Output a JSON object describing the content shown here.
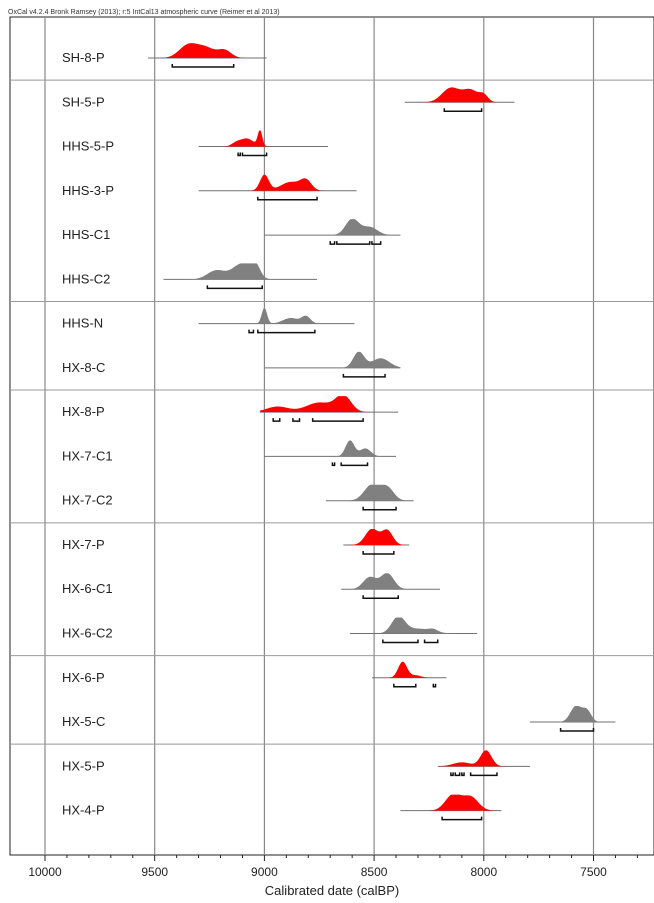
{
  "header": "OxCal v4.2.4 Bronk Ramsey (2013); r:5 IntCal13 atmospheric curve (Reimer et al 2013)",
  "colors": {
    "red": "#ff0000",
    "gray": "#808080",
    "line": "#707070",
    "bracket": "#111111",
    "separator": "#999999"
  },
  "chart_data": {
    "type": "area",
    "title": "",
    "xlabel": "Calibrated date (calBP)",
    "ylabel": "",
    "xlim": [
      10000,
      7250
    ],
    "x_reversed": true,
    "grid": "vertical",
    "xticks": [
      10000,
      9500,
      9000,
      8500,
      8000,
      7500
    ],
    "groups_after": [
      1,
      6,
      8,
      11,
      14,
      16
    ],
    "series": [
      {
        "name": "SH-8-P",
        "color": "red",
        "range": [
          9530,
          8990
        ],
        "peaks": [
          [
            9350,
            0.75,
            40
          ],
          [
            9270,
            0.65,
            45
          ],
          [
            9180,
            0.45,
            30
          ]
        ],
        "brackets": [
          [
            9420,
            9140
          ]
        ]
      },
      {
        "name": "SH-5-P",
        "color": "red",
        "range": [
          8360,
          7860
        ],
        "peaks": [
          [
            8150,
            0.9,
            40
          ],
          [
            8060,
            0.75,
            35
          ],
          [
            8000,
            0.4,
            20
          ]
        ],
        "brackets": [
          [
            8180,
            8010
          ]
        ]
      },
      {
        "name": "HHS-5-P",
        "color": "red",
        "range": [
          9300,
          8710
        ],
        "peaks": [
          [
            9020,
            1.0,
            10
          ],
          [
            9080,
            0.5,
            30
          ],
          [
            9130,
            0.2,
            20
          ]
        ],
        "brackets": [
          [
            9120,
            9110
          ],
          [
            9100,
            8990
          ]
        ]
      },
      {
        "name": "HHS-3-P",
        "color": "red",
        "range": [
          9300,
          8580
        ],
        "peaks": [
          [
            9000,
            1.0,
            20
          ],
          [
            8880,
            0.55,
            45
          ],
          [
            8810,
            0.6,
            25
          ]
        ],
        "brackets": [
          [
            9030,
            8760
          ]
        ]
      },
      {
        "name": "HHS-C1",
        "color": "gray",
        "range": [
          9000,
          8380
        ],
        "peaks": [
          [
            8600,
            1.0,
            30
          ],
          [
            8520,
            0.5,
            35
          ]
        ],
        "brackets": [
          [
            8700,
            8680
          ],
          [
            8670,
            8520
          ],
          [
            8510,
            8470
          ]
        ]
      },
      {
        "name": "HHS-C2",
        "color": "gray",
        "range": [
          9460,
          8760
        ],
        "peaks": [
          [
            9220,
            0.55,
            40
          ],
          [
            9100,
            1.0,
            45
          ],
          [
            9040,
            0.7,
            20
          ]
        ],
        "brackets": [
          [
            9260,
            9010
          ]
        ]
      },
      {
        "name": "HHS-N",
        "color": "gray",
        "range": [
          9300,
          8590
        ],
        "peaks": [
          [
            9000,
            1.0,
            12
          ],
          [
            8880,
            0.35,
            35
          ],
          [
            8810,
            0.45,
            20
          ]
        ],
        "brackets": [
          [
            9070,
            9050
          ],
          [
            9030,
            8770
          ]
        ]
      },
      {
        "name": "HX-8-C",
        "color": "gray",
        "range": [
          9000,
          8380
        ],
        "peaks": [
          [
            8570,
            1.0,
            25
          ],
          [
            8470,
            0.6,
            40
          ]
        ],
        "brackets": [
          [
            8640,
            8450
          ]
        ]
      },
      {
        "name": "HX-8-P",
        "color": "red",
        "range": [
          9020,
          8390
        ],
        "peaks": [
          [
            8940,
            0.35,
            50
          ],
          [
            8750,
            0.6,
            60
          ],
          [
            8640,
            1.0,
            35
          ]
        ],
        "brackets": [
          [
            8960,
            8930
          ],
          [
            8870,
            8840
          ],
          [
            8780,
            8550
          ]
        ]
      },
      {
        "name": "HX-7-C1",
        "color": "gray",
        "range": [
          9000,
          8400
        ],
        "peaks": [
          [
            8610,
            1.0,
            20
          ],
          [
            8540,
            0.5,
            25
          ]
        ],
        "brackets": [
          [
            8690,
            8680
          ],
          [
            8650,
            8530
          ]
        ]
      },
      {
        "name": "HX-7-C2",
        "color": "gray",
        "range": [
          8720,
          8320
        ],
        "peaks": [
          [
            8510,
            1.0,
            35
          ],
          [
            8440,
            0.8,
            30
          ]
        ],
        "brackets": [
          [
            8550,
            8400
          ]
        ]
      },
      {
        "name": "HX-7-P",
        "color": "red",
        "range": [
          8640,
          8340
        ],
        "peaks": [
          [
            8510,
            1.0,
            30
          ],
          [
            8440,
            0.9,
            25
          ]
        ],
        "brackets": [
          [
            8550,
            8410
          ]
        ]
      },
      {
        "name": "HX-6-C1",
        "color": "gray",
        "range": [
          8650,
          8200
        ],
        "peaks": [
          [
            8520,
            0.75,
            30
          ],
          [
            8440,
            1.0,
            30
          ]
        ],
        "brackets": [
          [
            8550,
            8390
          ]
        ]
      },
      {
        "name": "HX-6-C2",
        "color": "gray",
        "range": [
          8610,
          8030
        ],
        "peaks": [
          [
            8390,
            1.0,
            30
          ],
          [
            8300,
            0.3,
            60
          ],
          [
            8230,
            0.15,
            20
          ]
        ],
        "brackets": [
          [
            8460,
            8300
          ],
          [
            8270,
            8210
          ]
        ]
      },
      {
        "name": "HX-6-P",
        "color": "red",
        "range": [
          8510,
          8170
        ],
        "peaks": [
          [
            8370,
            1.0,
            20
          ],
          [
            8310,
            0.15,
            25
          ]
        ],
        "brackets": [
          [
            8410,
            8310
          ],
          [
            8230,
            8220
          ]
        ]
      },
      {
        "name": "HX-5-C",
        "color": "gray",
        "range": [
          7790,
          7400
        ],
        "peaks": [
          [
            7580,
            1.0,
            25
          ],
          [
            7530,
            0.7,
            20
          ]
        ],
        "brackets": [
          [
            7650,
            7500
          ]
        ]
      },
      {
        "name": "HX-5-P",
        "color": "red",
        "range": [
          8210,
          7790
        ],
        "peaks": [
          [
            7990,
            1.0,
            25
          ],
          [
            8100,
            0.25,
            40
          ]
        ],
        "brackets": [
          [
            8150,
            8140
          ],
          [
            8130,
            8110
          ],
          [
            8100,
            8090
          ],
          [
            8060,
            7940
          ]
        ]
      },
      {
        "name": "HX-4-P",
        "color": "red",
        "range": [
          8380,
          7920
        ],
        "peaks": [
          [
            8140,
            1.0,
            35
          ],
          [
            8060,
            0.85,
            35
          ]
        ],
        "brackets": [
          [
            8190,
            8010
          ]
        ]
      }
    ]
  }
}
